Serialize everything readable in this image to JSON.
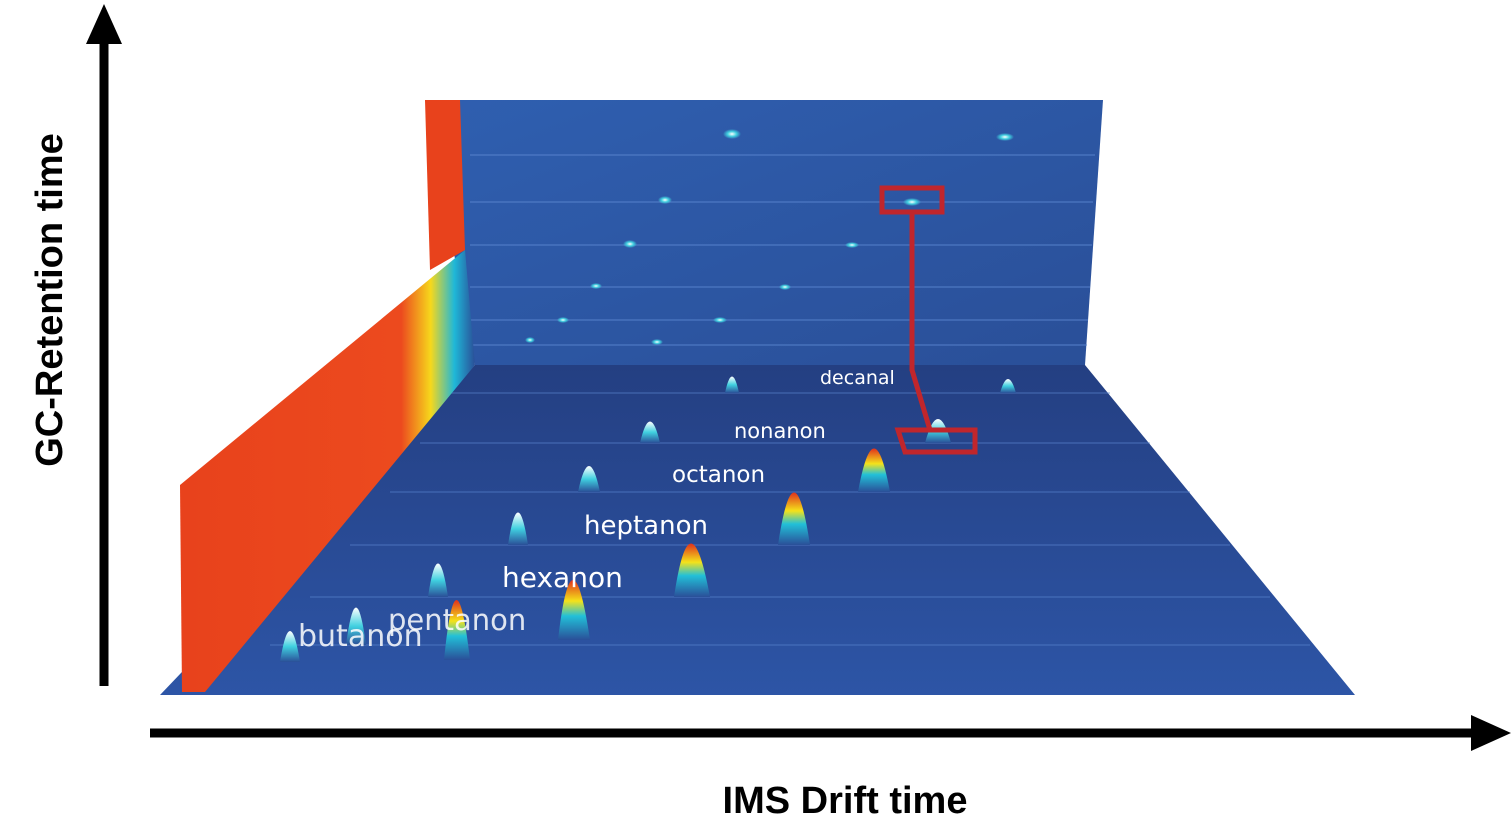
{
  "axes": {
    "y_label": "GC-Retention time",
    "x_label": "IMS Drift time"
  },
  "compounds": [
    "butanon",
    "pentanon",
    "hexanon",
    "heptanon",
    "octanon",
    "nonanon",
    "decanal"
  ]
}
